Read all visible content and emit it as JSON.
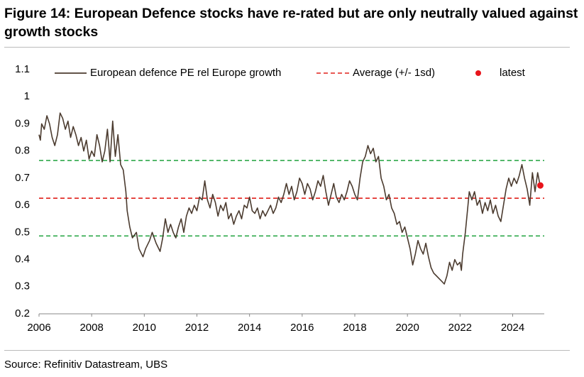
{
  "chart_data": {
    "type": "line",
    "title": "Figure 14: European Defence stocks have re-rated but are only neutrally valued against growth stocks",
    "source": "Source: Refinitiv Datastream, UBS",
    "xlim": [
      2006,
      2025.2
    ],
    "xticks": [
      2006,
      2008,
      2010,
      2012,
      2014,
      2016,
      2018,
      2020,
      2022,
      2024
    ],
    "ylim": [
      0.2,
      1.1
    ],
    "yticks": [
      0.2,
      0.3,
      0.4,
      0.5,
      0.6,
      0.7,
      0.8,
      0.9,
      1,
      1.1
    ],
    "grid": false,
    "legend": "top",
    "x": [
      2006.0,
      2006.05,
      2006.1,
      2006.2,
      2006.3,
      2006.4,
      2006.5,
      2006.6,
      2006.7,
      2006.8,
      2006.9,
      2007.0,
      2007.1,
      2007.2,
      2007.3,
      2007.4,
      2007.5,
      2007.6,
      2007.7,
      2007.8,
      2007.9,
      2008.0,
      2008.1,
      2008.2,
      2008.3,
      2008.4,
      2008.5,
      2008.6,
      2008.7,
      2008.8,
      2008.9,
      2009.0,
      2009.1,
      2009.2,
      2009.3,
      2009.35,
      2009.45,
      2009.55,
      2009.7,
      2009.8,
      2009.95,
      2010.05,
      2010.2,
      2010.3,
      2010.45,
      2010.6,
      2010.7,
      2010.8,
      2010.9,
      2011.0,
      2011.1,
      2011.2,
      2011.3,
      2011.4,
      2011.5,
      2011.6,
      2011.7,
      2011.8,
      2011.9,
      2012.0,
      2012.1,
      2012.2,
      2012.3,
      2012.4,
      2012.5,
      2012.6,
      2012.7,
      2012.8,
      2012.9,
      2013.0,
      2013.1,
      2013.2,
      2013.3,
      2013.4,
      2013.5,
      2013.6,
      2013.7,
      2013.8,
      2013.9,
      2014.0,
      2014.1,
      2014.2,
      2014.3,
      2014.4,
      2014.5,
      2014.6,
      2014.7,
      2014.8,
      2014.9,
      2015.0,
      2015.1,
      2015.2,
      2015.3,
      2015.4,
      2015.5,
      2015.6,
      2015.7,
      2015.8,
      2015.9,
      2016.0,
      2016.1,
      2016.2,
      2016.3,
      2016.4,
      2016.5,
      2016.6,
      2016.7,
      2016.8,
      2016.9,
      2017.0,
      2017.1,
      2017.2,
      2017.3,
      2017.4,
      2017.5,
      2017.6,
      2017.7,
      2017.8,
      2017.9,
      2018.0,
      2018.1,
      2018.2,
      2018.3,
      2018.4,
      2018.5,
      2018.6,
      2018.7,
      2018.8,
      2018.9,
      2019.0,
      2019.1,
      2019.2,
      2019.3,
      2019.4,
      2019.5,
      2019.6,
      2019.7,
      2019.8,
      2019.9,
      2020.0,
      2020.1,
      2020.2,
      2020.3,
      2020.4,
      2020.5,
      2020.6,
      2020.7,
      2020.8,
      2020.9,
      2021.0,
      2021.1,
      2021.2,
      2021.3,
      2021.4,
      2021.5,
      2021.6,
      2021.7,
      2021.8,
      2021.9,
      2022.0,
      2022.05,
      2022.1,
      2022.2,
      2022.3,
      2022.35,
      2022.45,
      2022.55,
      2022.65,
      2022.75,
      2022.85,
      2022.95,
      2023.05,
      2023.15,
      2023.25,
      2023.35,
      2023.45,
      2023.55,
      2023.65,
      2023.75,
      2023.85,
      2023.95,
      2024.05,
      2024.15,
      2024.25,
      2024.35,
      2024.45,
      2024.55,
      2024.65,
      2024.75,
      2024.85,
      2024.95,
      2025.05
    ],
    "series": [
      {
        "name": "European defence PE rel Europe growth",
        "color": "#4b3b2f",
        "values": [
          0.86,
          0.84,
          0.9,
          0.88,
          0.93,
          0.9,
          0.85,
          0.82,
          0.86,
          0.94,
          0.92,
          0.88,
          0.91,
          0.85,
          0.89,
          0.86,
          0.82,
          0.85,
          0.8,
          0.84,
          0.77,
          0.8,
          0.78,
          0.86,
          0.82,
          0.76,
          0.8,
          0.88,
          0.76,
          0.91,
          0.78,
          0.86,
          0.75,
          0.73,
          0.65,
          0.58,
          0.52,
          0.48,
          0.5,
          0.44,
          0.41,
          0.44,
          0.47,
          0.5,
          0.46,
          0.43,
          0.48,
          0.55,
          0.5,
          0.53,
          0.5,
          0.48,
          0.52,
          0.55,
          0.5,
          0.56,
          0.59,
          0.57,
          0.6,
          0.58,
          0.63,
          0.62,
          0.69,
          0.62,
          0.59,
          0.64,
          0.61,
          0.56,
          0.6,
          0.58,
          0.61,
          0.55,
          0.57,
          0.53,
          0.56,
          0.58,
          0.55,
          0.6,
          0.59,
          0.63,
          0.58,
          0.57,
          0.59,
          0.55,
          0.58,
          0.56,
          0.58,
          0.6,
          0.57,
          0.59,
          0.63,
          0.61,
          0.64,
          0.68,
          0.64,
          0.67,
          0.62,
          0.65,
          0.7,
          0.68,
          0.64,
          0.68,
          0.66,
          0.62,
          0.65,
          0.69,
          0.67,
          0.71,
          0.65,
          0.6,
          0.64,
          0.68,
          0.63,
          0.61,
          0.64,
          0.62,
          0.65,
          0.69,
          0.67,
          0.64,
          0.62,
          0.7,
          0.76,
          0.78,
          0.82,
          0.79,
          0.81,
          0.76,
          0.78,
          0.7,
          0.67,
          0.62,
          0.64,
          0.59,
          0.57,
          0.53,
          0.54,
          0.5,
          0.52,
          0.48,
          0.44,
          0.38,
          0.42,
          0.47,
          0.44,
          0.42,
          0.46,
          0.41,
          0.37,
          0.35,
          0.34,
          0.33,
          0.32,
          0.31,
          0.34,
          0.39,
          0.36,
          0.4,
          0.38,
          0.39,
          0.36,
          0.42,
          0.5,
          0.6,
          0.65,
          0.62,
          0.65,
          0.6,
          0.62,
          0.57,
          0.61,
          0.58,
          0.62,
          0.57,
          0.6,
          0.56,
          0.54,
          0.6,
          0.66,
          0.7,
          0.67,
          0.7,
          0.68,
          0.71,
          0.75,
          0.7,
          0.66,
          0.6,
          0.72,
          0.65,
          0.72,
          0.67
        ]
      }
    ],
    "reference": {
      "name": "Average (+/- 1sd)",
      "mean": 0.626,
      "upper": 0.765,
      "lower": 0.487,
      "color": "#e0201b",
      "band_color": "#2ea84a"
    },
    "latest": {
      "name": "latest",
      "x": 2025.05,
      "y": 0.673,
      "color": "#e8141b"
    }
  }
}
